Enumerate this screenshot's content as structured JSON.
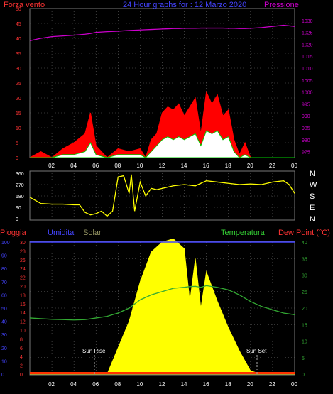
{
  "header": {
    "wind_label": "Forza vento",
    "title": "24 Hour graphs for : 12 Marzo 2020",
    "pressure_label": "Pressione"
  },
  "direction_labels": [
    "N",
    "W",
    "S",
    "E",
    "N"
  ],
  "lower_header": {
    "rain_label": "Pioggia",
    "humidity_label": "Umidita",
    "solar_label": "Solar",
    "temp_label": "Temperatura",
    "dewpoint_label": "Dew Point (°C)"
  },
  "annotations": {
    "sunrise": "Sun Rise",
    "sunset": "Sun Set"
  },
  "colors": {
    "wind": "#ff0000",
    "gust": "#00cc00",
    "wind_fill": "#ffffff",
    "pressure": "#cc00cc",
    "direction": "#ffff00",
    "solar": "#ffff00",
    "temperature": "#33aa33",
    "humidity": "#4444ff",
    "rain": "#ff3300",
    "axis_wind": "#ff3333",
    "axis_pressure": "#cc00cc",
    "axis_humidity": "#4444ff",
    "axis_rain": "#ff3333",
    "axis_temp": "#33aa33"
  },
  "chart_data": [
    {
      "type": "area",
      "title": "24 Hour graphs for : 12 Marzo 2020",
      "x_ticks": [
        "02",
        "04",
        "06",
        "08",
        "10",
        "12",
        "14",
        "16",
        "18",
        "20",
        "22",
        "00"
      ],
      "y_left": {
        "label": "Forza vento",
        "lim": [
          0,
          50
        ],
        "ticks": [
          0,
          5,
          10,
          15,
          20,
          25,
          30,
          35,
          40,
          45,
          50
        ]
      },
      "y_right": {
        "label": "Pressione",
        "lim": [
          972.5,
          1035
        ],
        "ticks": [
          975,
          980,
          985,
          990,
          995,
          1000,
          1005,
          1010,
          1015,
          1020,
          1025,
          1030
        ]
      },
      "x": [
        0,
        1,
        2,
        3,
        4,
        5,
        5.5,
        6,
        7,
        8,
        9,
        10,
        10.5,
        11,
        11.5,
        12,
        12.5,
        13,
        13.5,
        14,
        14.5,
        15,
        15.5,
        16,
        16.5,
        17,
        17.5,
        18,
        18.5,
        19,
        19.5,
        20,
        21,
        22,
        23,
        24
      ],
      "series": [
        {
          "name": "wind_gust",
          "values": [
            0,
            2,
            0,
            3,
            5,
            8,
            15,
            4,
            0,
            3,
            2,
            3,
            0,
            6,
            8,
            15,
            17,
            16,
            18,
            14,
            17,
            20,
            8,
            22,
            18,
            21,
            14,
            16,
            6,
            1,
            5,
            0,
            0,
            0,
            0,
            0
          ]
        },
        {
          "name": "wind_avg",
          "values": [
            0,
            0,
            0,
            1,
            1,
            2,
            5,
            1,
            0,
            1,
            1,
            1,
            0,
            2,
            4,
            6,
            7,
            6,
            7,
            6,
            7,
            8,
            4,
            9,
            8,
            9,
            6,
            7,
            2,
            0,
            1,
            0,
            0,
            0,
            0,
            0
          ]
        },
        {
          "name": "pressure",
          "values": [
            1021.5,
            1022.5,
            1023.2,
            1023.5,
            1023.8,
            1024.2,
            1024.5,
            1025.0,
            1025.3,
            1025.5,
            1025.8,
            1026.0,
            1026.1,
            1026.2,
            1026.3,
            1026.4,
            1026.5,
            1026.6,
            1026.6,
            1026.7,
            1026.7,
            1026.7,
            1026.8,
            1026.8,
            1026.8,
            1026.8,
            1026.8,
            1026.7,
            1026.7,
            1026.6,
            1026.6,
            1026.7,
            1027.0,
            1027.5,
            1028.0,
            1027.5
          ]
        }
      ]
    },
    {
      "type": "line",
      "title": "",
      "x_ticks": [
        "02",
        "04",
        "06",
        "08",
        "10",
        "12",
        "14",
        "16",
        "18",
        "20",
        "22",
        "00"
      ],
      "y_left": {
        "lim": [
          0,
          360
        ],
        "ticks": [
          0,
          90,
          180,
          270,
          360
        ]
      },
      "x": [
        0,
        1,
        2,
        3,
        4,
        4.5,
        5,
        5.5,
        6,
        6.5,
        7,
        7.5,
        8,
        8.5,
        9,
        9.2,
        9.5,
        10,
        10.5,
        11,
        11.5,
        12,
        13,
        14,
        15,
        16,
        17,
        18,
        19,
        20,
        21,
        22,
        23,
        23.5,
        24
      ],
      "series": [
        {
          "name": "wind_direction",
          "values": [
            170,
            120,
            115,
            115,
            110,
            110,
            50,
            30,
            40,
            60,
            20,
            60,
            330,
            340,
            200,
            350,
            60,
            290,
            180,
            240,
            230,
            240,
            260,
            270,
            260,
            300,
            290,
            280,
            270,
            275,
            270,
            290,
            300,
            270,
            200
          ]
        }
      ]
    },
    {
      "type": "area",
      "title": "",
      "x_ticks": [
        "02",
        "04",
        "06",
        "08",
        "10",
        "12",
        "14",
        "16",
        "18",
        "20",
        "22",
        "00"
      ],
      "y_left_outer": {
        "label": "Umidita",
        "lim": [
          0,
          100
        ],
        "ticks": [
          0,
          10,
          20,
          30,
          40,
          50,
          60,
          70,
          80,
          90,
          100
        ]
      },
      "y_left_inner": {
        "label": "Pioggia",
        "lim": [
          0,
          30
        ],
        "ticks": [
          0,
          2,
          4,
          6,
          8,
          10,
          12,
          14,
          16,
          18,
          20,
          22,
          24,
          26,
          28,
          30
        ]
      },
      "y_right": {
        "label": "Temperatura",
        "lim": [
          0,
          40
        ],
        "ticks": [
          0,
          5,
          10,
          15,
          20,
          25,
          30,
          35,
          40
        ]
      },
      "x": [
        0,
        1,
        2,
        3,
        4,
        5,
        6,
        7,
        7.5,
        8,
        9,
        10,
        11,
        12,
        13,
        14,
        14.5,
        15,
        15.5,
        16,
        17,
        18,
        19,
        20,
        21,
        22,
        23,
        24
      ],
      "series": [
        {
          "name": "solar",
          "values": [
            0,
            0,
            0,
            0,
            0,
            0,
            0,
            0,
            4,
            8,
            16,
            28,
            37,
            40,
            41,
            38,
            22,
            35,
            20,
            31,
            22,
            14,
            7,
            1,
            0,
            0,
            0,
            0
          ]
        },
        {
          "name": "temperature",
          "values": [
            17.0,
            16.8,
            16.6,
            16.5,
            16.4,
            16.5,
            17.0,
            17.5,
            18.0,
            18.5,
            20.0,
            22.5,
            24.0,
            25.0,
            26.0,
            26.3,
            26.5,
            26.6,
            26.3,
            26.8,
            26.3,
            25.5,
            24.0,
            22.0,
            20.5,
            19.5,
            18.5,
            18.0
          ]
        },
        {
          "name": "rain",
          "values": [
            0,
            0,
            0,
            0,
            0,
            0,
            0,
            0,
            0,
            0,
            0,
            0,
            0,
            0,
            0,
            0,
            0,
            0,
            0,
            0,
            0,
            0,
            0,
            0,
            0,
            0,
            0,
            0
          ]
        }
      ]
    }
  ]
}
